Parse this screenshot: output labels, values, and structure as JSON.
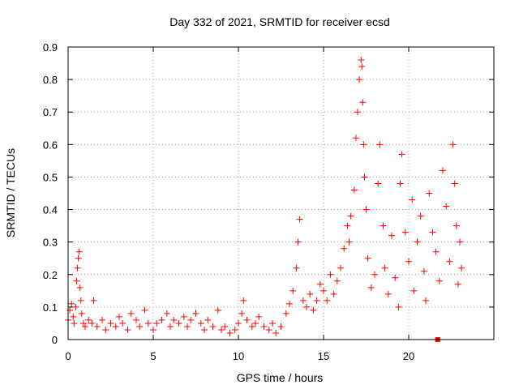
{
  "chart_data": {
    "type": "scatter",
    "title": "Day 332 of 2021, SRMTID for receiver ecsd",
    "xlabel": "GPS time / hours",
    "ylabel": "SRMTID / TECUs",
    "xlim": [
      0,
      25
    ],
    "ylim": [
      0,
      0.9
    ],
    "x_ticks": [
      0,
      5,
      10,
      15,
      20
    ],
    "x_tick_labels": [
      "0",
      "5",
      "10",
      "15",
      "20"
    ],
    "y_ticks": [
      0,
      0.1,
      0.2,
      0.3,
      0.4,
      0.5,
      0.6,
      0.7,
      0.8,
      0.9
    ],
    "y_tick_labels": [
      "0",
      "0.1",
      "0.2",
      "0.3",
      "0.4",
      "0.5",
      "0.6",
      "0.7",
      "0.8",
      "0.9"
    ],
    "grid": true,
    "marker": "plus",
    "color": "#ff0000",
    "series": [
      {
        "name": "SRMTID",
        "points": [
          [
            0.0,
            0.06
          ],
          [
            0.1,
            0.09
          ],
          [
            0.2,
            0.11
          ],
          [
            0.3,
            0.07
          ],
          [
            0.35,
            0.05
          ],
          [
            0.45,
            0.1
          ],
          [
            0.5,
            0.18
          ],
          [
            0.55,
            0.22
          ],
          [
            0.6,
            0.25
          ],
          [
            0.65,
            0.27
          ],
          [
            0.7,
            0.16
          ],
          [
            0.75,
            0.12
          ],
          [
            0.8,
            0.08
          ],
          [
            0.9,
            0.05
          ],
          [
            1.0,
            0.04
          ],
          [
            1.2,
            0.06
          ],
          [
            1.4,
            0.05
          ],
          [
            1.5,
            0.12
          ],
          [
            1.7,
            0.04
          ],
          [
            2.0,
            0.06
          ],
          [
            2.2,
            0.03
          ],
          [
            2.5,
            0.05
          ],
          [
            2.8,
            0.04
          ],
          [
            3.0,
            0.07
          ],
          [
            3.2,
            0.05
          ],
          [
            3.5,
            0.03
          ],
          [
            3.7,
            0.08
          ],
          [
            4.0,
            0.06
          ],
          [
            4.2,
            0.04
          ],
          [
            4.5,
            0.09
          ],
          [
            4.7,
            0.05
          ],
          [
            5.0,
            0.03
          ],
          [
            5.2,
            0.05
          ],
          [
            5.5,
            0.06
          ],
          [
            5.8,
            0.08
          ],
          [
            6.0,
            0.04
          ],
          [
            6.2,
            0.06
          ],
          [
            6.5,
            0.05
          ],
          [
            6.8,
            0.07
          ],
          [
            7.0,
            0.04
          ],
          [
            7.2,
            0.06
          ],
          [
            7.5,
            0.08
          ],
          [
            7.8,
            0.05
          ],
          [
            8.0,
            0.03
          ],
          [
            8.2,
            0.06
          ],
          [
            8.5,
            0.04
          ],
          [
            8.8,
            0.09
          ],
          [
            9.0,
            0.03
          ],
          [
            9.2,
            0.04
          ],
          [
            9.5,
            0.02
          ],
          [
            9.8,
            0.03
          ],
          [
            10.0,
            0.05
          ],
          [
            10.2,
            0.08
          ],
          [
            10.3,
            0.12
          ],
          [
            10.5,
            0.06
          ],
          [
            10.8,
            0.04
          ],
          [
            11.0,
            0.05
          ],
          [
            11.2,
            0.07
          ],
          [
            11.5,
            0.04
          ],
          [
            11.8,
            0.03
          ],
          [
            12.0,
            0.05
          ],
          [
            12.2,
            0.02
          ],
          [
            12.5,
            0.04
          ],
          [
            12.8,
            0.08
          ],
          [
            13.0,
            0.11
          ],
          [
            13.2,
            0.15
          ],
          [
            13.4,
            0.22
          ],
          [
            13.5,
            0.3
          ],
          [
            13.6,
            0.37
          ],
          [
            13.8,
            0.12
          ],
          [
            14.0,
            0.1
          ],
          [
            14.2,
            0.14
          ],
          [
            14.4,
            0.09
          ],
          [
            14.6,
            0.12
          ],
          [
            14.8,
            0.17
          ],
          [
            15.0,
            0.15
          ],
          [
            15.2,
            0.12
          ],
          [
            15.4,
            0.2
          ],
          [
            15.6,
            0.14
          ],
          [
            15.8,
            0.18
          ],
          [
            16.0,
            0.22
          ],
          [
            16.2,
            0.28
          ],
          [
            16.4,
            0.35
          ],
          [
            16.5,
            0.3
          ],
          [
            16.6,
            0.38
          ],
          [
            16.8,
            0.46
          ],
          [
            16.9,
            0.62
          ],
          [
            17.0,
            0.7
          ],
          [
            17.1,
            0.8
          ],
          [
            17.2,
            0.86
          ],
          [
            17.25,
            0.84
          ],
          [
            17.3,
            0.73
          ],
          [
            17.35,
            0.6
          ],
          [
            17.4,
            0.5
          ],
          [
            17.5,
            0.4
          ],
          [
            17.6,
            0.25
          ],
          [
            17.8,
            0.16
          ],
          [
            18.0,
            0.2
          ],
          [
            18.2,
            0.48
          ],
          [
            18.3,
            0.6
          ],
          [
            18.5,
            0.35
          ],
          [
            18.6,
            0.22
          ],
          [
            18.8,
            0.14
          ],
          [
            19.0,
            0.32
          ],
          [
            19.2,
            0.19
          ],
          [
            19.4,
            0.1
          ],
          [
            19.5,
            0.48
          ],
          [
            19.6,
            0.57
          ],
          [
            19.8,
            0.33
          ],
          [
            20.0,
            0.24
          ],
          [
            20.2,
            0.43
          ],
          [
            20.3,
            0.15
          ],
          [
            20.5,
            0.3
          ],
          [
            20.7,
            0.38
          ],
          [
            20.9,
            0.21
          ],
          [
            21.0,
            0.12
          ],
          [
            21.2,
            0.45
          ],
          [
            21.4,
            0.33
          ],
          [
            21.6,
            0.27
          ],
          [
            21.8,
            0.18
          ],
          [
            22.0,
            0.52
          ],
          [
            22.2,
            0.41
          ],
          [
            22.4,
            0.24
          ],
          [
            22.6,
            0.6
          ],
          [
            22.7,
            0.48
          ],
          [
            22.8,
            0.35
          ],
          [
            22.9,
            0.17
          ],
          [
            23.0,
            0.3
          ],
          [
            23.1,
            0.22
          ]
        ]
      }
    ],
    "square_markers": [
      [
        21.7,
        0.0
      ]
    ]
  }
}
